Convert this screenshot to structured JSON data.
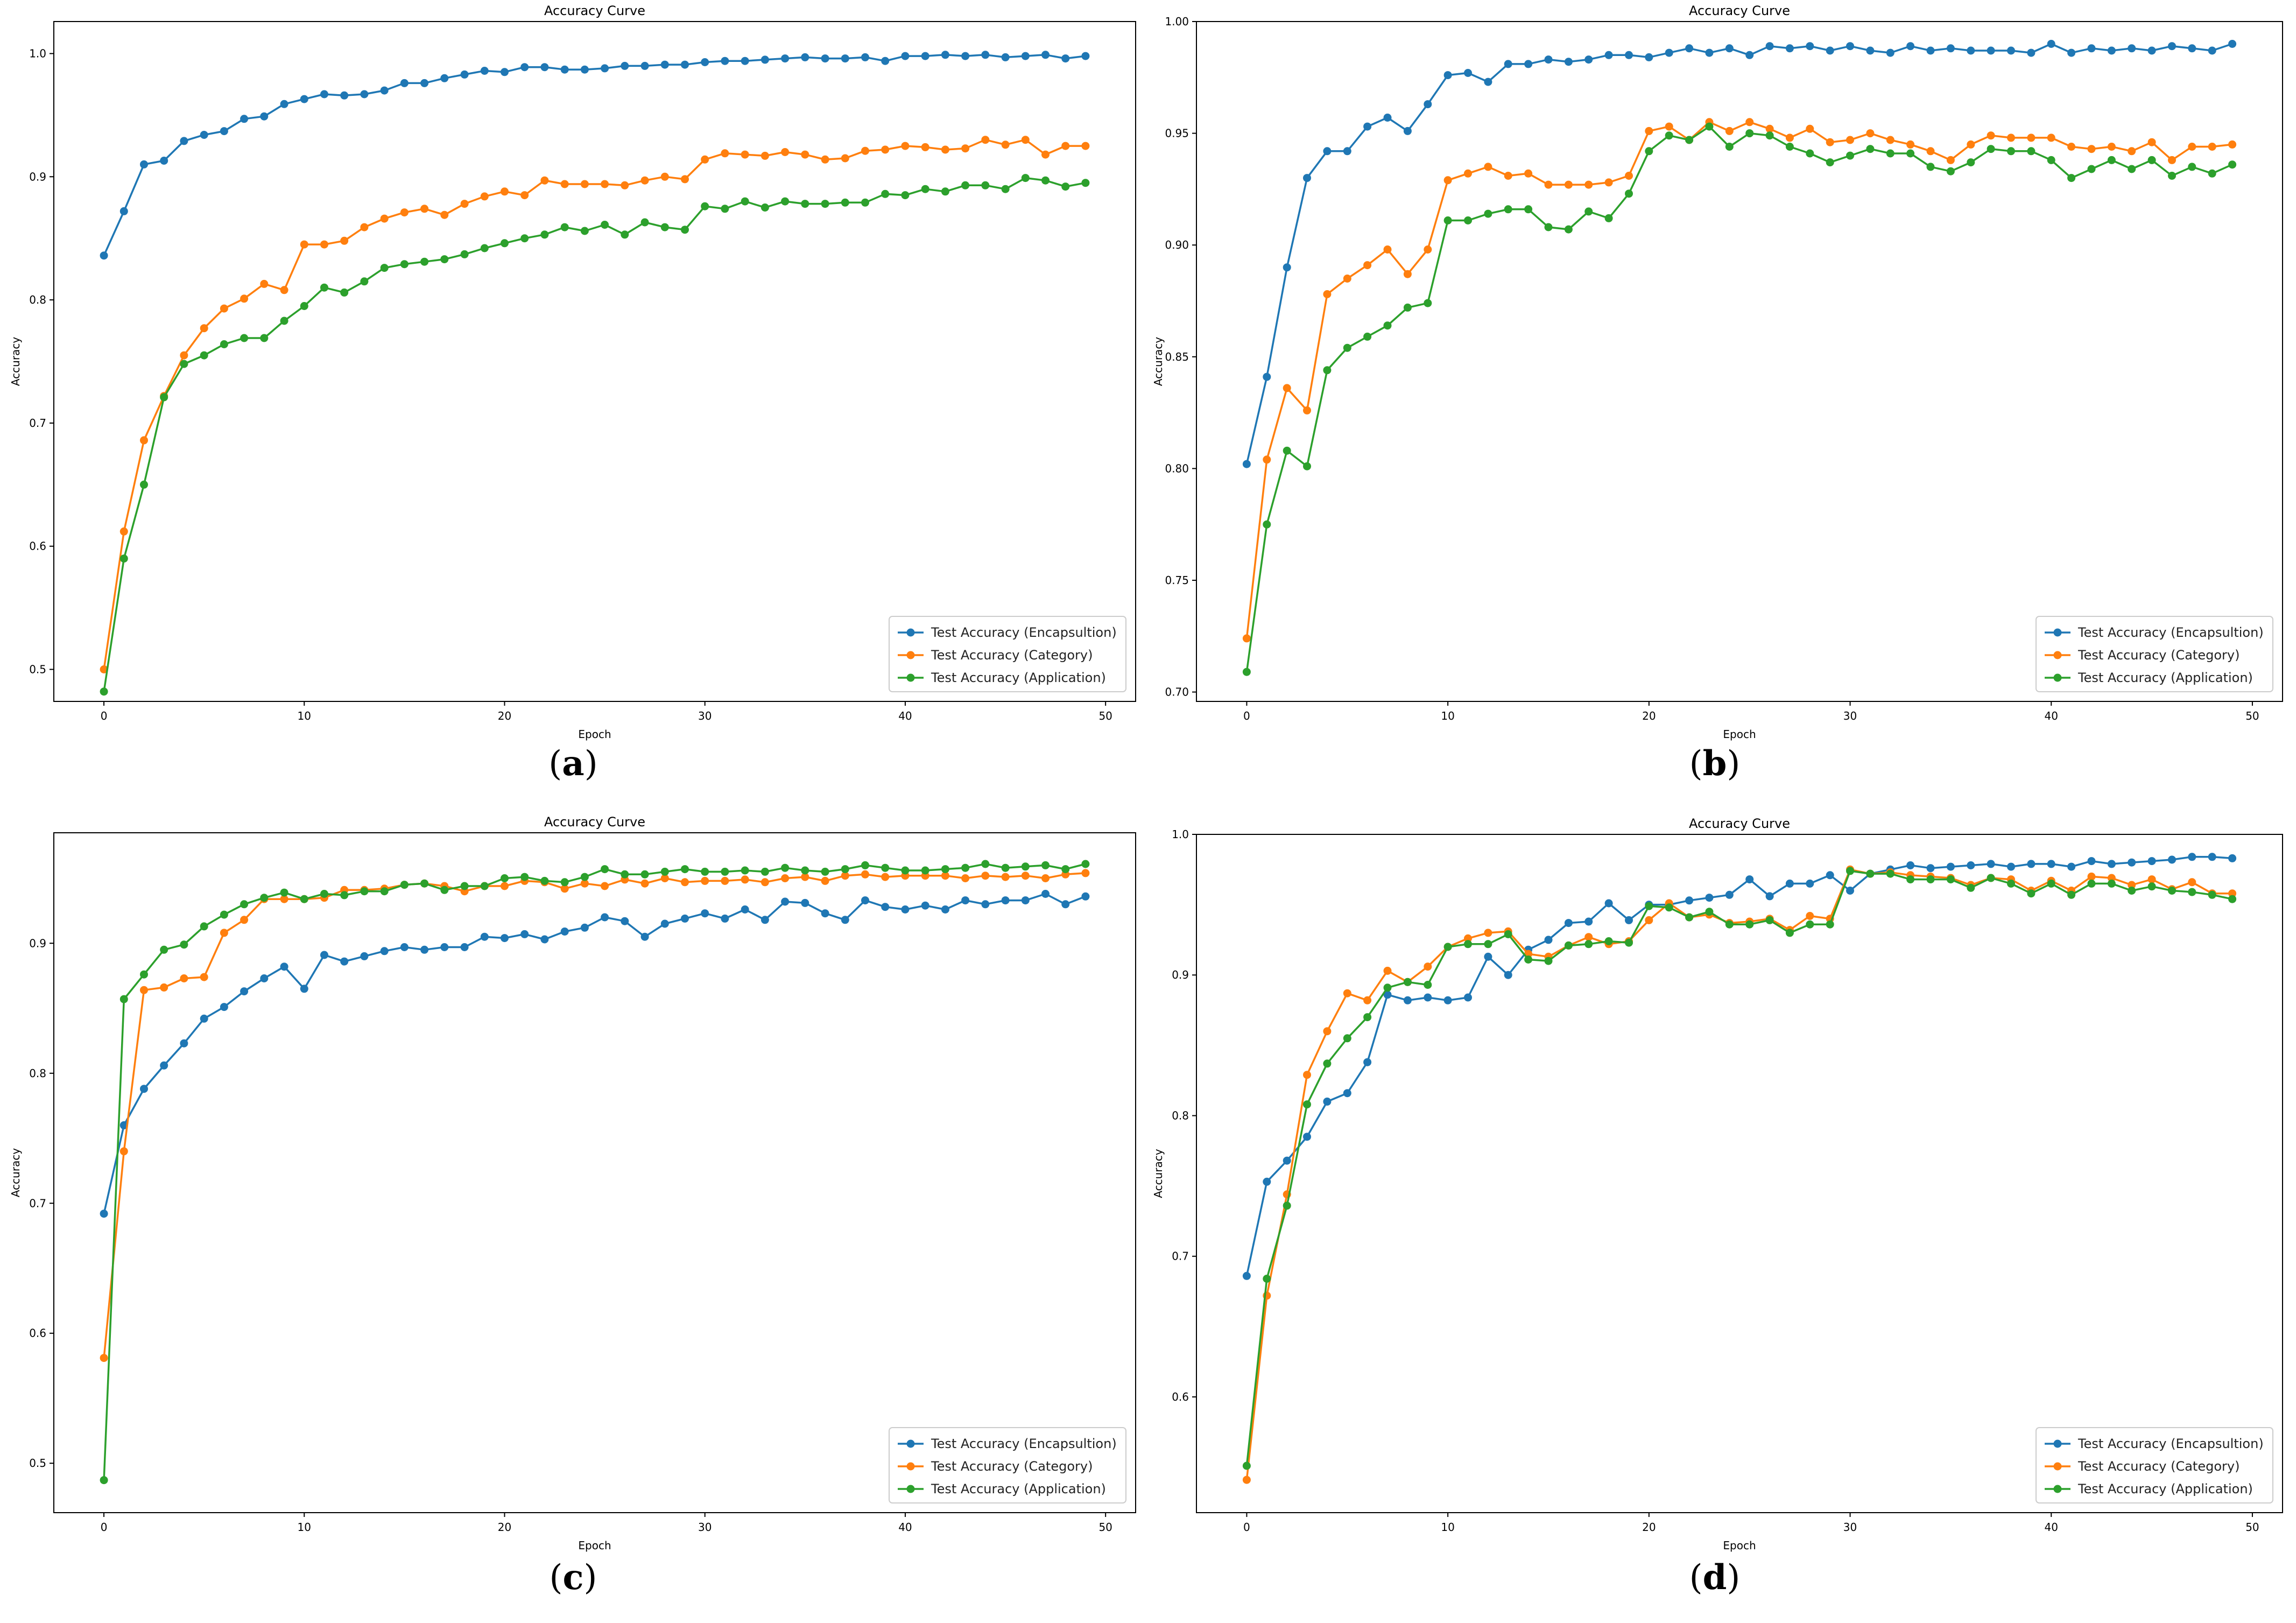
{
  "colors": {
    "encapsulation": "#1f77b4",
    "category": "#ff7f0e",
    "application": "#2ca02c"
  },
  "chart_data": [
    {
      "type": "line",
      "panel_label": "a",
      "title": "Accuracy Curve",
      "xlabel": "Epoch",
      "ylabel": "Accuracy",
      "xlim": [
        -2.5,
        51.5
      ],
      "ylim": [
        0.474,
        1.026
      ],
      "xticks": [
        0,
        10,
        20,
        30,
        40,
        50
      ],
      "yticks": [
        0.5,
        0.6,
        0.7,
        0.8,
        0.9,
        1.0
      ],
      "ytick_labels": [
        "0.5",
        "0.6",
        "0.7",
        "0.8",
        "0.9",
        "1.0"
      ],
      "legend_position": "lower-right",
      "x": [
        0,
        1,
        2,
        3,
        4,
        5,
        6,
        7,
        8,
        9,
        10,
        11,
        12,
        13,
        14,
        15,
        16,
        17,
        18,
        19,
        20,
        21,
        22,
        23,
        24,
        25,
        26,
        27,
        28,
        29,
        30,
        31,
        32,
        33,
        34,
        35,
        36,
        37,
        38,
        39,
        40,
        41,
        42,
        43,
        44,
        45,
        46,
        47,
        48,
        49
      ],
      "series": [
        {
          "name": "Test Accuracy (Encapsultion)",
          "key": "encapsulation",
          "values": [
            0.836,
            0.872,
            0.91,
            0.913,
            0.929,
            0.934,
            0.937,
            0.947,
            0.949,
            0.959,
            0.963,
            0.967,
            0.966,
            0.967,
            0.97,
            0.976,
            0.976,
            0.98,
            0.983,
            0.986,
            0.985,
            0.989,
            0.989,
            0.987,
            0.987,
            0.988,
            0.99,
            0.99,
            0.991,
            0.991,
            0.993,
            0.994,
            0.994,
            0.995,
            0.996,
            0.997,
            0.996,
            0.996,
            0.997,
            0.994,
            0.998,
            0.998,
            0.999,
            0.998,
            0.999,
            0.997,
            0.998,
            0.999,
            0.996,
            0.998
          ]
        },
        {
          "name": "Test Accuracy (Category)",
          "key": "category",
          "values": [
            0.5,
            0.612,
            0.686,
            0.722,
            0.755,
            0.777,
            0.793,
            0.801,
            0.813,
            0.808,
            0.845,
            0.845,
            0.848,
            0.859,
            0.866,
            0.871,
            0.874,
            0.869,
            0.878,
            0.884,
            0.888,
            0.885,
            0.897,
            0.894,
            0.894,
            0.894,
            0.893,
            0.897,
            0.9,
            0.898,
            0.914,
            0.919,
            0.918,
            0.917,
            0.92,
            0.918,
            0.914,
            0.915,
            0.921,
            0.922,
            0.925,
            0.924,
            0.922,
            0.923,
            0.93,
            0.926,
            0.93,
            0.918,
            0.925,
            0.925
          ]
        },
        {
          "name": "Test Accuracy (Application)",
          "key": "application",
          "values": [
            0.482,
            0.59,
            0.65,
            0.721,
            0.748,
            0.755,
            0.764,
            0.769,
            0.769,
            0.783,
            0.795,
            0.81,
            0.806,
            0.815,
            0.826,
            0.829,
            0.831,
            0.833,
            0.837,
            0.842,
            0.846,
            0.85,
            0.853,
            0.859,
            0.856,
            0.861,
            0.853,
            0.863,
            0.859,
            0.857,
            0.876,
            0.874,
            0.88,
            0.875,
            0.88,
            0.878,
            0.878,
            0.879,
            0.879,
            0.886,
            0.885,
            0.89,
            0.888,
            0.893,
            0.893,
            0.89,
            0.899,
            0.897,
            0.892,
            0.895
          ]
        }
      ]
    },
    {
      "type": "line",
      "panel_label": "b",
      "title": "Accuracy Curve",
      "xlabel": "Epoch",
      "ylabel": "Accuracy",
      "xlim": [
        -2.5,
        51.5
      ],
      "ylim": [
        0.6958,
        1.0
      ],
      "xticks": [
        0,
        10,
        20,
        30,
        40,
        50
      ],
      "yticks": [
        0.7,
        0.75,
        0.8,
        0.85,
        0.9,
        0.95,
        1.0
      ],
      "ytick_labels": [
        "0.70",
        "0.75",
        "0.80",
        "0.85",
        "0.90",
        "0.95",
        "1.00"
      ],
      "legend_position": "lower-right",
      "x": [
        0,
        1,
        2,
        3,
        4,
        5,
        6,
        7,
        8,
        9,
        10,
        11,
        12,
        13,
        14,
        15,
        16,
        17,
        18,
        19,
        20,
        21,
        22,
        23,
        24,
        25,
        26,
        27,
        28,
        29,
        30,
        31,
        32,
        33,
        34,
        35,
        36,
        37,
        38,
        39,
        40,
        41,
        42,
        43,
        44,
        45,
        46,
        47,
        48,
        49
      ],
      "series": [
        {
          "name": "Test Accuracy (Encapsultion)",
          "key": "encapsulation",
          "values": [
            0.802,
            0.841,
            0.89,
            0.93,
            0.942,
            0.942,
            0.953,
            0.957,
            0.951,
            0.963,
            0.976,
            0.977,
            0.973,
            0.981,
            0.981,
            0.983,
            0.982,
            0.983,
            0.985,
            0.985,
            0.984,
            0.986,
            0.988,
            0.986,
            0.988,
            0.985,
            0.989,
            0.988,
            0.989,
            0.987,
            0.989,
            0.987,
            0.986,
            0.989,
            0.987,
            0.988,
            0.987,
            0.987,
            0.987,
            0.986,
            0.99,
            0.986,
            0.988,
            0.987,
            0.988,
            0.987,
            0.989,
            0.988,
            0.987,
            0.99
          ]
        },
        {
          "name": "Test Accuracy (Category)",
          "key": "category",
          "values": [
            0.724,
            0.804,
            0.836,
            0.826,
            0.878,
            0.885,
            0.891,
            0.898,
            0.887,
            0.898,
            0.929,
            0.932,
            0.935,
            0.931,
            0.932,
            0.927,
            0.927,
            0.927,
            0.928,
            0.931,
            0.951,
            0.953,
            0.947,
            0.955,
            0.951,
            0.955,
            0.952,
            0.948,
            0.952,
            0.946,
            0.947,
            0.95,
            0.947,
            0.945,
            0.942,
            0.938,
            0.945,
            0.949,
            0.948,
            0.948,
            0.948,
            0.944,
            0.943,
            0.944,
            0.942,
            0.946,
            0.938,
            0.944,
            0.944,
            0.945
          ]
        },
        {
          "name": "Test Accuracy (Application)",
          "key": "application",
          "values": [
            0.709,
            0.775,
            0.808,
            0.801,
            0.844,
            0.854,
            0.859,
            0.864,
            0.872,
            0.874,
            0.911,
            0.911,
            0.914,
            0.916,
            0.916,
            0.908,
            0.907,
            0.915,
            0.912,
            0.923,
            0.942,
            0.949,
            0.947,
            0.953,
            0.944,
            0.95,
            0.949,
            0.944,
            0.941,
            0.937,
            0.94,
            0.943,
            0.941,
            0.941,
            0.935,
            0.933,
            0.937,
            0.943,
            0.942,
            0.942,
            0.938,
            0.93,
            0.934,
            0.938,
            0.934,
            0.938,
            0.931,
            0.935,
            0.932,
            0.936
          ]
        }
      ]
    },
    {
      "type": "line",
      "panel_label": "c",
      "title": "Accuracy Curve",
      "xlabel": "Epoch",
      "ylabel": "Accuracy",
      "xlim": [
        -2.5,
        51.5
      ],
      "ylim": [
        0.462,
        0.985
      ],
      "xticks": [
        0,
        10,
        20,
        30,
        40,
        50
      ],
      "yticks": [
        0.5,
        0.6,
        0.7,
        0.8,
        0.9
      ],
      "ytick_labels": [
        "0.5",
        "0.6",
        "0.7",
        "0.8",
        "0.9"
      ],
      "legend_position": "lower-right",
      "x": [
        0,
        1,
        2,
        3,
        4,
        5,
        6,
        7,
        8,
        9,
        10,
        11,
        12,
        13,
        14,
        15,
        16,
        17,
        18,
        19,
        20,
        21,
        22,
        23,
        24,
        25,
        26,
        27,
        28,
        29,
        30,
        31,
        32,
        33,
        34,
        35,
        36,
        37,
        38,
        39,
        40,
        41,
        42,
        43,
        44,
        45,
        46,
        47,
        48,
        49
      ],
      "series": [
        {
          "name": "Test Accuracy (Encapsultion)",
          "key": "encapsulation",
          "values": [
            0.692,
            0.76,
            0.788,
            0.806,
            0.823,
            0.842,
            0.851,
            0.863,
            0.873,
            0.882,
            0.865,
            0.891,
            0.886,
            0.89,
            0.894,
            0.897,
            0.895,
            0.897,
            0.897,
            0.905,
            0.904,
            0.907,
            0.903,
            0.909,
            0.912,
            0.92,
            0.917,
            0.905,
            0.915,
            0.919,
            0.923,
            0.919,
            0.926,
            0.918,
            0.932,
            0.931,
            0.923,
            0.918,
            0.933,
            0.928,
            0.926,
            0.929,
            0.926,
            0.933,
            0.93,
            0.933,
            0.933,
            0.938,
            0.93,
            0.936
          ]
        },
        {
          "name": "Test Accuracy (Category)",
          "key": "category",
          "values": [
            0.581,
            0.74,
            0.864,
            0.866,
            0.873,
            0.874,
            0.908,
            0.918,
            0.934,
            0.934,
            0.934,
            0.935,
            0.941,
            0.941,
            0.942,
            0.945,
            0.946,
            0.944,
            0.94,
            0.944,
            0.944,
            0.948,
            0.947,
            0.942,
            0.946,
            0.944,
            0.949,
            0.946,
            0.95,
            0.947,
            0.948,
            0.948,
            0.949,
            0.947,
            0.95,
            0.951,
            0.948,
            0.952,
            0.953,
            0.951,
            0.952,
            0.952,
            0.952,
            0.95,
            0.952,
            0.951,
            0.952,
            0.95,
            0.953,
            0.954
          ]
        },
        {
          "name": "Test Accuracy (Application)",
          "key": "application",
          "values": [
            0.487,
            0.857,
            0.876,
            0.895,
            0.899,
            0.913,
            0.922,
            0.93,
            0.935,
            0.939,
            0.934,
            0.938,
            0.937,
            0.94,
            0.94,
            0.945,
            0.946,
            0.941,
            0.944,
            0.944,
            0.95,
            0.951,
            0.948,
            0.947,
            0.951,
            0.957,
            0.953,
            0.953,
            0.955,
            0.957,
            0.955,
            0.955,
            0.956,
            0.955,
            0.958,
            0.956,
            0.955,
            0.957,
            0.96,
            0.958,
            0.956,
            0.956,
            0.957,
            0.958,
            0.961,
            0.958,
            0.959,
            0.96,
            0.957,
            0.961
          ]
        }
      ]
    },
    {
      "type": "line",
      "panel_label": "d",
      "title": "Accuracy Curve",
      "xlabel": "Epoch",
      "ylabel": "Accuracy",
      "xlim": [
        -2.5,
        51.5
      ],
      "ylim": [
        0.5177,
        1.0
      ],
      "xticks": [
        0,
        10,
        20,
        30,
        40,
        50
      ],
      "yticks": [
        0.6,
        0.7,
        0.8,
        0.9,
        1.0
      ],
      "ytick_labels": [
        "0.6",
        "0.7",
        "0.8",
        "0.9",
        "1.0"
      ],
      "legend_position": "lower-right",
      "x": [
        0,
        1,
        2,
        3,
        4,
        5,
        6,
        7,
        8,
        9,
        10,
        11,
        12,
        13,
        14,
        15,
        16,
        17,
        18,
        19,
        20,
        21,
        22,
        23,
        24,
        25,
        26,
        27,
        28,
        29,
        30,
        31,
        32,
        33,
        34,
        35,
        36,
        37,
        38,
        39,
        40,
        41,
        42,
        43,
        44,
        45,
        46,
        47,
        48,
        49
      ],
      "series": [
        {
          "name": "Test Accuracy (Encapsultion)",
          "key": "encapsulation",
          "values": [
            0.686,
            0.753,
            0.768,
            0.785,
            0.81,
            0.816,
            0.838,
            0.886,
            0.882,
            0.884,
            0.882,
            0.884,
            0.913,
            0.9,
            0.918,
            0.925,
            0.937,
            0.938,
            0.951,
            0.939,
            0.95,
            0.95,
            0.953,
            0.955,
            0.957,
            0.968,
            0.956,
            0.965,
            0.965,
            0.971,
            0.96,
            0.972,
            0.975,
            0.978,
            0.976,
            0.977,
            0.978,
            0.979,
            0.977,
            0.979,
            0.979,
            0.977,
            0.981,
            0.979,
            0.98,
            0.981,
            0.982,
            0.984,
            0.984,
            0.983
          ]
        },
        {
          "name": "Test Accuracy (Category)",
          "key": "category",
          "values": [
            0.541,
            0.672,
            0.744,
            0.829,
            0.86,
            0.887,
            0.882,
            0.903,
            0.895,
            0.906,
            0.92,
            0.926,
            0.93,
            0.931,
            0.915,
            0.913,
            0.921,
            0.927,
            0.922,
            0.924,
            0.939,
            0.951,
            0.941,
            0.943,
            0.937,
            0.938,
            0.94,
            0.932,
            0.942,
            0.94,
            0.975,
            0.972,
            0.973,
            0.971,
            0.97,
            0.969,
            0.964,
            0.969,
            0.968,
            0.96,
            0.967,
            0.96,
            0.97,
            0.969,
            0.964,
            0.968,
            0.961,
            0.966,
            0.958,
            0.958
          ]
        },
        {
          "name": "Test Accuracy (Application)",
          "key": "application",
          "values": [
            0.551,
            0.684,
            0.736,
            0.808,
            0.837,
            0.855,
            0.87,
            0.891,
            0.895,
            0.893,
            0.92,
            0.922,
            0.922,
            0.929,
            0.911,
            0.91,
            0.921,
            0.922,
            0.924,
            0.923,
            0.949,
            0.948,
            0.941,
            0.945,
            0.936,
            0.936,
            0.939,
            0.93,
            0.936,
            0.936,
            0.974,
            0.972,
            0.972,
            0.968,
            0.968,
            0.968,
            0.962,
            0.969,
            0.965,
            0.958,
            0.965,
            0.957,
            0.965,
            0.965,
            0.96,
            0.963,
            0.96,
            0.959,
            0.957,
            0.954
          ]
        }
      ]
    }
  ]
}
